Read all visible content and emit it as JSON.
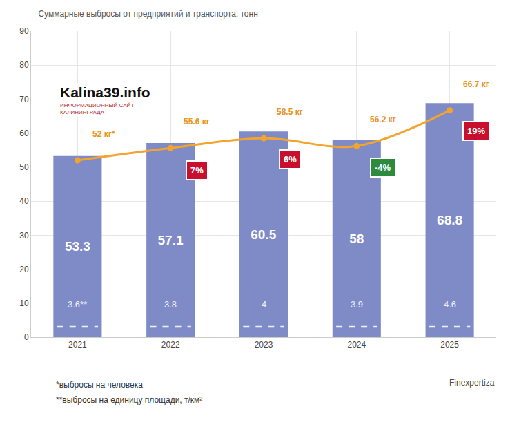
{
  "chart_data": {
    "type": "bar",
    "title": "Суммарные выбросы от предприятий и транспорта, тонн",
    "categories": [
      "2021",
      "2022",
      "2023",
      "2024",
      "2025"
    ],
    "series": [
      {
        "type": "bar",
        "color": "#7f8bc7",
        "values": [
          53.3,
          57.1,
          60.5,
          58,
          68.8
        ],
        "data_labels": true
      },
      {
        "type": "line",
        "color": "#f2a42c",
        "marker": "circle",
        "line_style": "spline",
        "values": [
          52,
          55.6,
          58.5,
          56.2,
          66.7
        ],
        "value_labels": [
          "52 кг*",
          "55.6 кг",
          "58.5 кг",
          "56.2 кг",
          "66.7 кг"
        ]
      }
    ],
    "change": {
      "values": [
        null,
        7,
        6,
        -4,
        19
      ],
      "value_labels": [
        null,
        "7%",
        "6%",
        "-4%",
        "19%"
      ],
      "colors": [
        null,
        "#c8102e",
        "#c8102e",
        "#2e8b3e",
        "#c8102e"
      ]
    },
    "per_area": {
      "values": [
        3.6,
        3.8,
        4,
        3.9,
        4.6
      ],
      "value_labels": [
        "3.6**",
        "3.8",
        "4",
        "3.9",
        "4.6"
      ]
    },
    "ylim": [
      0,
      90
    ],
    "yticks": [
      0,
      10,
      20,
      30,
      40,
      50,
      60,
      70,
      80,
      90
    ],
    "grid": true,
    "notes": [
      "*выбросы на человека",
      "**выбросы на единицу площади, т/км²"
    ],
    "source": "Finexpertiza",
    "logo": {
      "text": "Kalina39.info",
      "subtitle": [
        "ИНФОРМАЦИОННЫЙ САЙТ",
        "КАЛИНИНГРАДА"
      ]
    }
  }
}
